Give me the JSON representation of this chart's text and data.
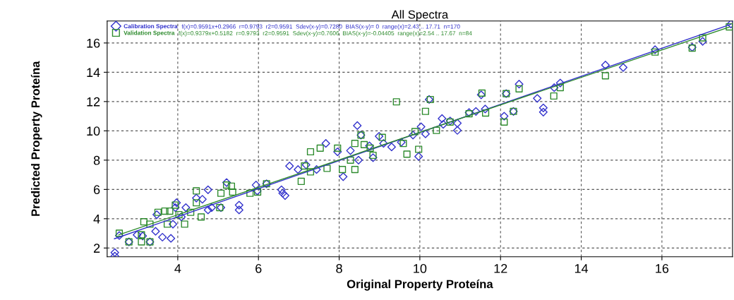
{
  "chart_data": {
    "type": "scatter",
    "title": "All Spectra",
    "xlabel": "Original Property Proteína",
    "ylabel": "Predicted Property Proteína",
    "annotations": [
      "f(x)=0.9591x+0.2966  r=0.9793  r2=0.9591  Sdev(x-y)=0.7280  BIAS(x-y)= 0  range(x)=2.43 .. 17.71  n=170",
      "f(x)=0.9379x+0.5182  r=0.9793  r2=0.9591  Sdev(x-y)=0.7606  BIAS(x-y)=-0.04405  range(x)=2.54 .. 17.67  n=84"
    ],
    "series": [
      {
        "name": "Calibration Spectra",
        "color": "#3333cc",
        "marker": "diamond",
        "x": [
          2.44,
          2.44,
          2.55,
          2.79,
          2.99,
          3.13,
          3.31,
          3.45,
          3.48,
          3.62,
          3.83,
          3.94,
          3.97,
          3.88,
          4.09,
          4.2,
          4.46,
          4.61,
          4.75,
          4.75,
          4.84,
          5.07,
          5.21,
          5.52,
          5.52,
          5.94,
          5.97,
          6.2,
          6.57,
          6.6,
          6.66,
          6.77,
          6.98,
          7.18,
          7.44,
          7.67,
          7.96,
          8.1,
          8.28,
          8.45,
          8.48,
          8.54,
          8.75,
          8.84,
          8.99,
          9.1,
          9.3,
          9.54,
          9.83,
          9.97,
          10.03,
          10.14,
          10.23,
          10.55,
          10.58,
          10.75,
          10.93,
          10.93,
          11.22,
          11.39,
          11.52,
          11.62,
          12.09,
          12.14,
          12.32,
          12.46,
          12.91,
          13.06,
          13.06,
          13.33,
          13.48,
          14.6,
          15.04,
          15.83,
          16.75,
          17.01,
          17.71
        ],
        "values": [
          1.69,
          1.45,
          2.85,
          2.42,
          2.9,
          2.82,
          2.42,
          3.14,
          4.28,
          2.74,
          2.66,
          4.76,
          5.09,
          3.63,
          4.12,
          4.76,
          5.41,
          5.33,
          5.98,
          4.6,
          4.76,
          4.76,
          6.47,
          4.93,
          4.6,
          6.3,
          5.9,
          6.39,
          5.98,
          5.74,
          5.58,
          7.6,
          7.36,
          7.68,
          7.36,
          9.14,
          8.57,
          6.87,
          8.65,
          10.36,
          8.0,
          9.71,
          8.98,
          8.17,
          9.63,
          9.14,
          8.9,
          9.22,
          9.71,
          8.25,
          10.28,
          9.79,
          12.14,
          10.84,
          10.44,
          10.68,
          10.52,
          10.03,
          11.25,
          11.33,
          12.46,
          11.49,
          11.0,
          12.54,
          11.33,
          13.19,
          12.22,
          11.57,
          11.28,
          12.95,
          13.27,
          14.49,
          14.33,
          15.54,
          15.7,
          16.11,
          17.3
        ]
      },
      {
        "name": "Validation Spectra",
        "color": "#2e8b2e",
        "marker": "square",
        "x": [
          2.55,
          2.79,
          3.1,
          3.16,
          3.1,
          3.31,
          3.31,
          3.51,
          3.68,
          3.74,
          3.8,
          3.94,
          4.03,
          4.17,
          4.32,
          4.46,
          4.46,
          4.58,
          5.04,
          5.07,
          5.21,
          5.33,
          5.36,
          5.79,
          5.98,
          6.2,
          7.06,
          7.14,
          7.29,
          7.29,
          7.53,
          7.7,
          7.96,
          8.08,
          8.28,
          8.39,
          8.39,
          8.54,
          8.62,
          8.77,
          8.84,
          9.07,
          9.59,
          9.68,
          9.88,
          9.97,
          9.42,
          10.14,
          10.26,
          10.41,
          10.75,
          11.22,
          11.54,
          11.63,
          12.09,
          12.14,
          12.32,
          12.46,
          13.32,
          13.48,
          14.6,
          15.83,
          16.75,
          17.01,
          17.67
        ],
        "values": [
          3.01,
          2.42,
          2.9,
          3.79,
          2.42,
          3.63,
          2.42,
          4.44,
          4.52,
          3.63,
          4.52,
          4.93,
          4.28,
          3.63,
          4.44,
          5.9,
          5.09,
          4.12,
          4.76,
          5.74,
          6.3,
          6.22,
          5.82,
          5.74,
          5.82,
          6.39,
          6.55,
          7.6,
          8.57,
          7.2,
          8.82,
          7.44,
          8.82,
          7.36,
          8.0,
          9.14,
          7.36,
          9.71,
          9.06,
          8.82,
          8.33,
          9.55,
          9.14,
          8.41,
          9.95,
          8.74,
          11.98,
          11.33,
          12.14,
          10.03,
          10.6,
          11.17,
          12.58,
          11.22,
          10.6,
          12.54,
          11.33,
          12.87,
          12.38,
          12.95,
          13.76,
          15.38,
          15.65,
          16.35,
          17.1
        ]
      },
      {
        "type": "line",
        "color": "#3333cc",
        "x": [
          2.43,
          17.71
        ],
        "values": [
          2.63,
          17.28
        ]
      },
      {
        "type": "line",
        "color": "#2e8b2e",
        "x": [
          2.54,
          17.67
        ],
        "values": [
          2.9,
          17.09
        ]
      }
    ],
    "xlim": [
      2.25,
      17.75
    ],
    "ylim": [
      1.4,
      17.5
    ],
    "xticks": [
      4,
      6,
      8,
      10,
      12,
      14,
      16
    ],
    "yticks": [
      2,
      4,
      6,
      8,
      10,
      12,
      14,
      16
    ],
    "grid": true,
    "legend": "top left"
  }
}
